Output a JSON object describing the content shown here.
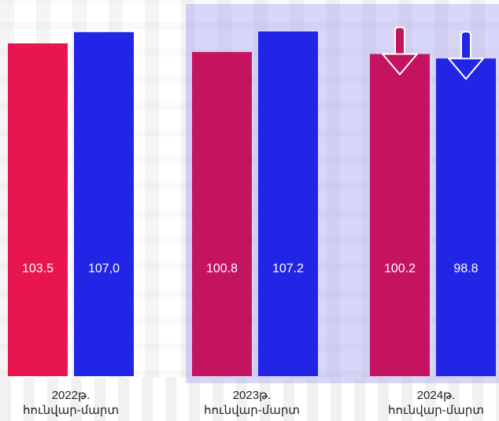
{
  "chart_data": {
    "type": "bar",
    "title": "",
    "xlabel": "",
    "ylabel": "",
    "categories": [
      {
        "year": "2022թ.",
        "period": "հունվար-մարտ"
      },
      {
        "year": "2023թ.",
        "period": "հունվար-մարտ"
      },
      {
        "year": "2024թ.",
        "period": "հունվար-մարտ"
      }
    ],
    "series": [
      {
        "color": "#e8154e",
        "alt_color": "#c4135f",
        "values": [
          103.5,
          100.8,
          100.2
        ],
        "labels": [
          "103.5",
          "100.8",
          "100.2"
        ]
      },
      {
        "color": "#2224e6",
        "values": [
          107.0,
          107.2,
          98.8
        ],
        "labels": [
          "107,0",
          "107.2",
          "98.8"
        ]
      }
    ],
    "ylim": [
      0,
      107.2
    ],
    "grid": false,
    "legend": "none",
    "annotations": [
      {
        "type": "down-arrow-icon",
        "category_index": 2,
        "series_index": 0
      },
      {
        "type": "down-arrow-icon",
        "category_index": 2,
        "series_index": 1
      }
    ],
    "highlight_categories": [
      1,
      2
    ]
  }
}
